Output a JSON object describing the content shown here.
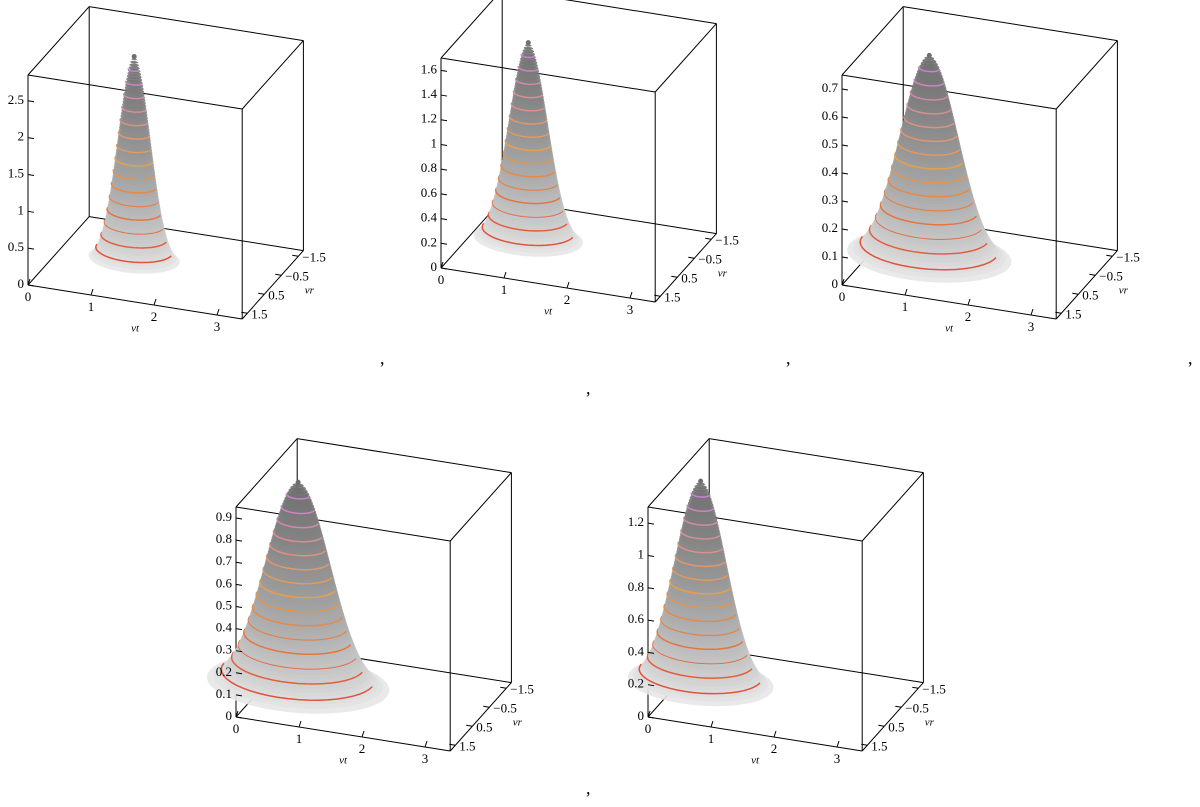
{
  "chart_data": [
    {
      "type": "surface3d",
      "xlabel": "vt",
      "ylabel": "vr",
      "xlim": [
        0,
        3.4
      ],
      "ylim": [
        -1.8,
        1.8
      ],
      "zlim": [
        0,
        2.85
      ],
      "xticks": [
        0,
        1,
        2,
        3
      ],
      "yticks": [
        {
          "value": -1.5,
          "label": "−1.5"
        },
        {
          "value": -0.5,
          "label": "−0.5"
        },
        0.5,
        1.5
      ],
      "zticks": [
        0,
        0.5,
        1,
        1.5,
        2,
        2.5
      ],
      "peak": {
        "vt": 1.2,
        "vr": 0,
        "z": 2.8,
        "width": 0.25
      },
      "surface_color": "#6e6e6e",
      "contour_colors": [
        "#e0483a",
        "#e8a048",
        "#c77ae8"
      ]
    },
    {
      "type": "surface3d",
      "xlabel": "vt",
      "ylabel": "vr",
      "xlim": [
        0,
        3.4
      ],
      "ylim": [
        -1.8,
        1.8
      ],
      "zlim": [
        0,
        1.7
      ],
      "xticks": [
        0,
        1,
        2,
        3
      ],
      "yticks": [
        {
          "value": -1.5,
          "label": "−1.5"
        },
        {
          "value": -0.5,
          "label": "−0.5"
        },
        0.5,
        1.5
      ],
      "zticks": [
        0,
        0.2,
        0.4,
        0.6,
        0.8,
        1,
        1.2,
        1.4,
        1.6
      ],
      "peak": {
        "vt": 0.9,
        "vr": 0,
        "z": 1.62,
        "width": 0.3
      },
      "surface_color": "#6e6e6e",
      "contour_colors": [
        "#e0483a",
        "#e8a048",
        "#c77ae8"
      ]
    },
    {
      "type": "surface3d",
      "xlabel": "vt",
      "ylabel": "vr",
      "xlim": [
        0,
        3.4
      ],
      "ylim": [
        -1.8,
        1.8
      ],
      "zlim": [
        0,
        0.75
      ],
      "xticks": [
        0,
        1,
        2,
        3
      ],
      "yticks": [
        {
          "value": -1.5,
          "label": "−1.5"
        },
        {
          "value": -0.5,
          "label": "−0.5"
        },
        0.5,
        1.5
      ],
      "zticks": [
        0,
        0.1,
        0.2,
        0.3,
        0.4,
        0.5,
        0.6,
        0.7
      ],
      "peak": {
        "vt": 0.9,
        "vr": 0,
        "z": 0.73,
        "width": 0.45
      },
      "surface_color": "#6e6e6e",
      "contour_colors": [
        "#e0483a",
        "#e8a048",
        "#c77ae8"
      ]
    },
    {
      "type": "surface3d",
      "xlabel": "vt",
      "ylabel": "vr",
      "xlim": [
        0,
        3.4
      ],
      "ylim": [
        -1.8,
        1.8
      ],
      "zlim": [
        0,
        0.95
      ],
      "xticks": [
        0,
        1,
        2,
        3
      ],
      "yticks": [
        {
          "value": -1.5,
          "label": "−1.5"
        },
        {
          "value": -0.5,
          "label": "−0.5"
        },
        0.5,
        1.5
      ],
      "zticks": [
        0,
        0.1,
        0.2,
        0.3,
        0.4,
        0.5,
        0.6,
        0.7,
        0.8,
        0.9
      ],
      "peak": {
        "vt": 0.5,
        "vr": 0,
        "z": 0.93,
        "width": 0.5
      },
      "surface_color": "#6e6e6e",
      "contour_colors": [
        "#e0483a",
        "#e8a048",
        "#c77ae8"
      ]
    },
    {
      "type": "surface3d",
      "xlabel": "vt",
      "ylabel": "vr",
      "xlim": [
        0,
        3.4
      ],
      "ylim": [
        -1.8,
        1.8
      ],
      "zlim": [
        0,
        1.3
      ],
      "xticks": [
        0,
        1,
        2,
        3
      ],
      "yticks": [
        {
          "value": -1.5,
          "label": "−1.5"
        },
        {
          "value": -0.5,
          "label": "−0.5"
        },
        0.5,
        1.5
      ],
      "zticks": [
        0,
        0.2,
        0.4,
        0.6,
        0.8,
        1,
        1.2
      ],
      "peak": {
        "vt": 0.35,
        "vr": 0,
        "z": 1.27,
        "width": 0.4
      },
      "surface_color": "#6e6e6e",
      "contour_colors": [
        "#e0483a",
        "#e8a048",
        "#c77ae8"
      ]
    }
  ],
  "separators": [
    ",",
    ",",
    ",",
    ",",
    ","
  ]
}
